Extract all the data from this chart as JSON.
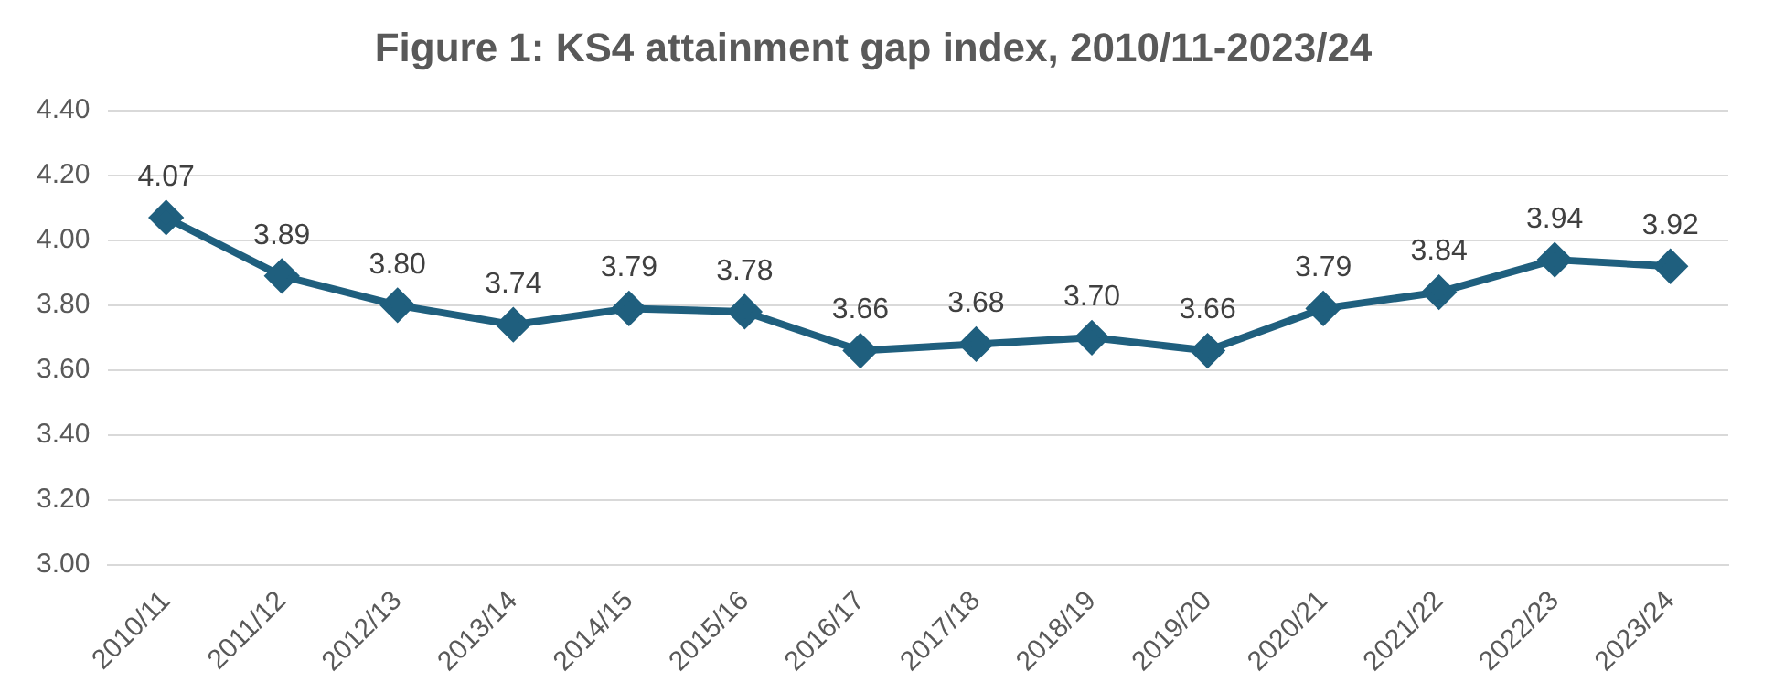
{
  "chart_data": {
    "type": "line",
    "title": "Figure 1: KS4 attainment gap index, 2010/11-2023/24",
    "categories": [
      "2010/11",
      "2011/12",
      "2012/13",
      "2013/14",
      "2014/15",
      "2015/16",
      "2016/17",
      "2017/18",
      "2018/19",
      "2019/20",
      "2020/21",
      "2021/22",
      "2022/23",
      "2023/24"
    ],
    "series": [
      {
        "color": "#1f5f7e",
        "values": [
          4.07,
          3.89,
          3.8,
          3.74,
          3.79,
          3.78,
          3.66,
          3.68,
          3.7,
          3.66,
          3.79,
          3.84,
          3.94,
          3.92
        ],
        "value_labels": [
          "4.07",
          "3.89",
          "3.80",
          "3.74",
          "3.79",
          "3.78",
          "3.66",
          "3.68",
          "3.70",
          "3.66",
          "3.79",
          "3.84",
          "3.94",
          "3.92"
        ]
      }
    ],
    "ylim": [
      3.0,
      4.4
    ],
    "yticks": [
      {
        "value": 3.0,
        "label": "3.00"
      },
      {
        "value": 3.2,
        "label": "3.20"
      },
      {
        "value": 3.4,
        "label": "3.40"
      },
      {
        "value": 3.6,
        "label": "3.60"
      },
      {
        "value": 3.8,
        "label": "3.80"
      },
      {
        "value": 4.0,
        "label": "4.00"
      },
      {
        "value": 4.2,
        "label": "4.20"
      },
      {
        "value": 4.4,
        "label": "4.40"
      }
    ],
    "grid": "y",
    "marker": "diamond",
    "line_style": "solid",
    "legend": false
  }
}
